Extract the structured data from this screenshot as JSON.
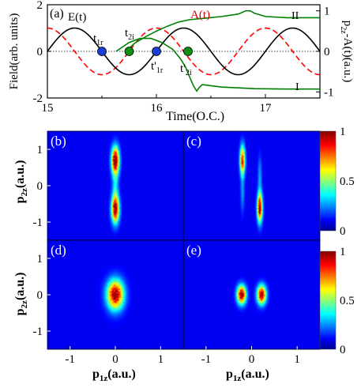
{
  "chart_data": [
    {
      "panel": "(a)",
      "type": "line",
      "xlabel": "Time(O.C.)",
      "ylabel": "Field(arb. units)",
      "ylabel_right": "p2z-A(t)(a.u.)",
      "xlim": [
        15,
        17.5
      ],
      "ylim": [
        -2,
        2
      ],
      "ylim_right": [
        -1.15,
        1.15
      ],
      "x_ticks": [
        15,
        16,
        17
      ],
      "y_ticks": [
        -2,
        0,
        2
      ],
      "y_ticks_right": [
        -1,
        0,
        1
      ],
      "series": [
        {
          "name": "E(t)",
          "color": "#000000",
          "style": "solid",
          "function": "1.0*sin(2*pi*(t-15))"
        },
        {
          "name": "A(t)",
          "color": "#ff0000",
          "style": "dashed",
          "function": "1.0*cos(2*pi*(t-15))"
        },
        {
          "name": "I",
          "color": "#008000",
          "style": "solid",
          "axis": "right",
          "x": [
            15.63,
            15.75,
            15.85,
            15.95,
            16.05,
            16.15,
            16.22,
            16.27,
            16.3,
            16.34,
            16.37,
            16.39,
            16.42,
            16.6,
            16.9,
            17.2,
            17.5
          ],
          "y": [
            0,
            0.22,
            0.32,
            0.32,
            0.22,
            0.05,
            -0.18,
            -0.4,
            -0.6,
            -0.85,
            -0.98,
            -0.9,
            -0.82,
            -0.88,
            -0.92,
            -0.93,
            -0.93
          ]
        },
        {
          "name": "II",
          "color": "#008000",
          "style": "solid",
          "axis": "right",
          "x": [
            15.72,
            15.8,
            15.9,
            16.0,
            16.1,
            16.2,
            16.3,
            16.45,
            16.6,
            16.75,
            16.82,
            16.86,
            16.9,
            17.0,
            17.2,
            17.5
          ],
          "y": [
            0,
            0.2,
            0.36,
            0.5,
            0.62,
            0.72,
            0.78,
            0.82,
            0.86,
            0.92,
            1.0,
            1.0,
            0.94,
            0.86,
            0.83,
            0.83
          ]
        }
      ],
      "markers": [
        {
          "label": "t1r",
          "x": 15.5,
          "y": 0,
          "color": "#1a3fd6"
        },
        {
          "label": "t2i",
          "x": 15.75,
          "y": 0,
          "color": "#109010"
        },
        {
          "label": "t'1r",
          "x": 16.0,
          "y": 0,
          "color": "#1a3fd6"
        },
        {
          "label": "t'2i",
          "x": 16.29,
          "y": 0,
          "color": "#109010"
        }
      ],
      "labels": {
        "E": "E(t)",
        "A": "A(t)",
        "I": "I",
        "II": "II"
      },
      "marker_text": {
        "t1r": {
          "main": "t",
          "sub": "1r"
        },
        "t2i": {
          "main": "t",
          "sub": "2i"
        },
        "t1r_prime": {
          "main": "t'",
          "sub": "1r"
        },
        "t2i_prime": {
          "main": "t'",
          "sub": "2i"
        }
      }
    },
    {
      "type": "heatmap",
      "panels": [
        {
          "id": "(b)",
          "blobs": [
            {
              "x": 0,
              "y": 0.7,
              "sx": 0.06,
              "sy": 0.26,
              "a": 1.0
            },
            {
              "x": 0,
              "y": -0.65,
              "sx": 0.06,
              "sy": 0.26,
              "a": 0.95
            },
            {
              "x": 0,
              "y": 0.0,
              "sx": 0.05,
              "sy": 0.45,
              "a": 0.25
            }
          ]
        },
        {
          "id": "(c)",
          "blobs": [
            {
              "x": -0.2,
              "y": 0.7,
              "sx": 0.04,
              "sy": 0.28,
              "a": 0.85
            },
            {
              "x": 0.18,
              "y": -0.6,
              "sx": 0.04,
              "sy": 0.28,
              "a": 1.0
            },
            {
              "x": -0.2,
              "y": -0.2,
              "sx": 0.03,
              "sy": 0.35,
              "a": 0.2
            },
            {
              "x": 0.18,
              "y": 0.3,
              "sx": 0.03,
              "sy": 0.35,
              "a": 0.2
            }
          ]
        },
        {
          "id": "(d)",
          "blobs": [
            {
              "x": 0,
              "y": 0,
              "sx": 0.13,
              "sy": 0.28,
              "a": 1.0
            }
          ]
        },
        {
          "id": "(e)",
          "blobs": [
            {
              "x": -0.22,
              "y": 0,
              "sx": 0.07,
              "sy": 0.18,
              "a": 1.0
            },
            {
              "x": 0.22,
              "y": 0,
              "sx": 0.07,
              "sy": 0.18,
              "a": 1.0
            }
          ]
        }
      ],
      "xlim": [
        -1.5,
        1.5
      ],
      "ylim": [
        -1.5,
        1.5
      ],
      "x_ticks": [
        -1,
        0,
        1
      ],
      "y_ticks": [
        -1,
        0,
        1
      ],
      "xlabel": "p1z(a.u.)",
      "ylabel": "p2z(a.u.)",
      "colorbar_ticks": [
        0,
        0.5,
        1
      ]
    }
  ]
}
